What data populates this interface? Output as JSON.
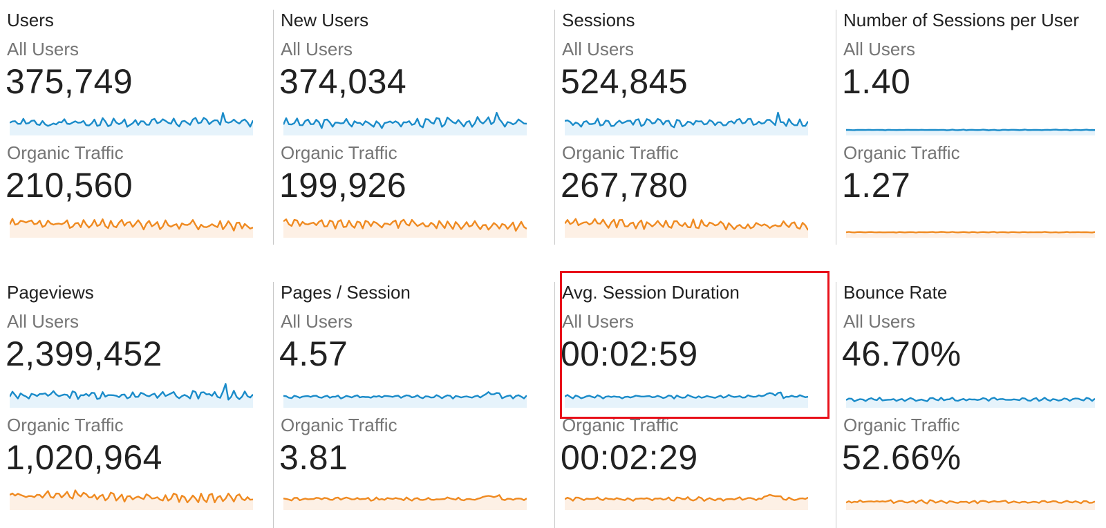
{
  "colors": {
    "all_users_line": "#1a8bc9",
    "all_users_fill": "#e6f3fb",
    "organic_line": "#ef8a21",
    "organic_fill": "#fdf0e5",
    "divider": "#c8c8c8",
    "highlight": "#e8101a"
  },
  "metrics": [
    {
      "title": "Users",
      "segments": [
        {
          "label": "All Users",
          "value": "375,749"
        },
        {
          "label": "Organic Traffic",
          "value": "210,560"
        }
      ]
    },
    {
      "title": "New Users",
      "segments": [
        {
          "label": "All Users",
          "value": "374,034"
        },
        {
          "label": "Organic Traffic",
          "value": "199,926"
        }
      ]
    },
    {
      "title": "Sessions",
      "segments": [
        {
          "label": "All Users",
          "value": "524,845"
        },
        {
          "label": "Organic Traffic",
          "value": "267,780"
        }
      ]
    },
    {
      "title": "Number of Sessions per User",
      "segments": [
        {
          "label": "All Users",
          "value": "1.40"
        },
        {
          "label": "Organic Traffic",
          "value": "1.27"
        }
      ]
    },
    {
      "title": "Pageviews",
      "segments": [
        {
          "label": "All Users",
          "value": "2,399,452"
        },
        {
          "label": "Organic Traffic",
          "value": "1,020,964"
        }
      ]
    },
    {
      "title": "Pages / Session",
      "segments": [
        {
          "label": "All Users",
          "value": "4.57"
        },
        {
          "label": "Organic Traffic",
          "value": "3.81"
        }
      ]
    },
    {
      "title": "Avg. Session Duration",
      "segments": [
        {
          "label": "All Users",
          "value": "00:02:59"
        },
        {
          "label": "Organic Traffic",
          "value": "00:02:29"
        }
      ]
    },
    {
      "title": "Bounce Rate",
      "segments": [
        {
          "label": "All Users",
          "value": "46.70%"
        },
        {
          "label": "Organic Traffic",
          "value": "52.66%"
        }
      ]
    }
  ]
}
